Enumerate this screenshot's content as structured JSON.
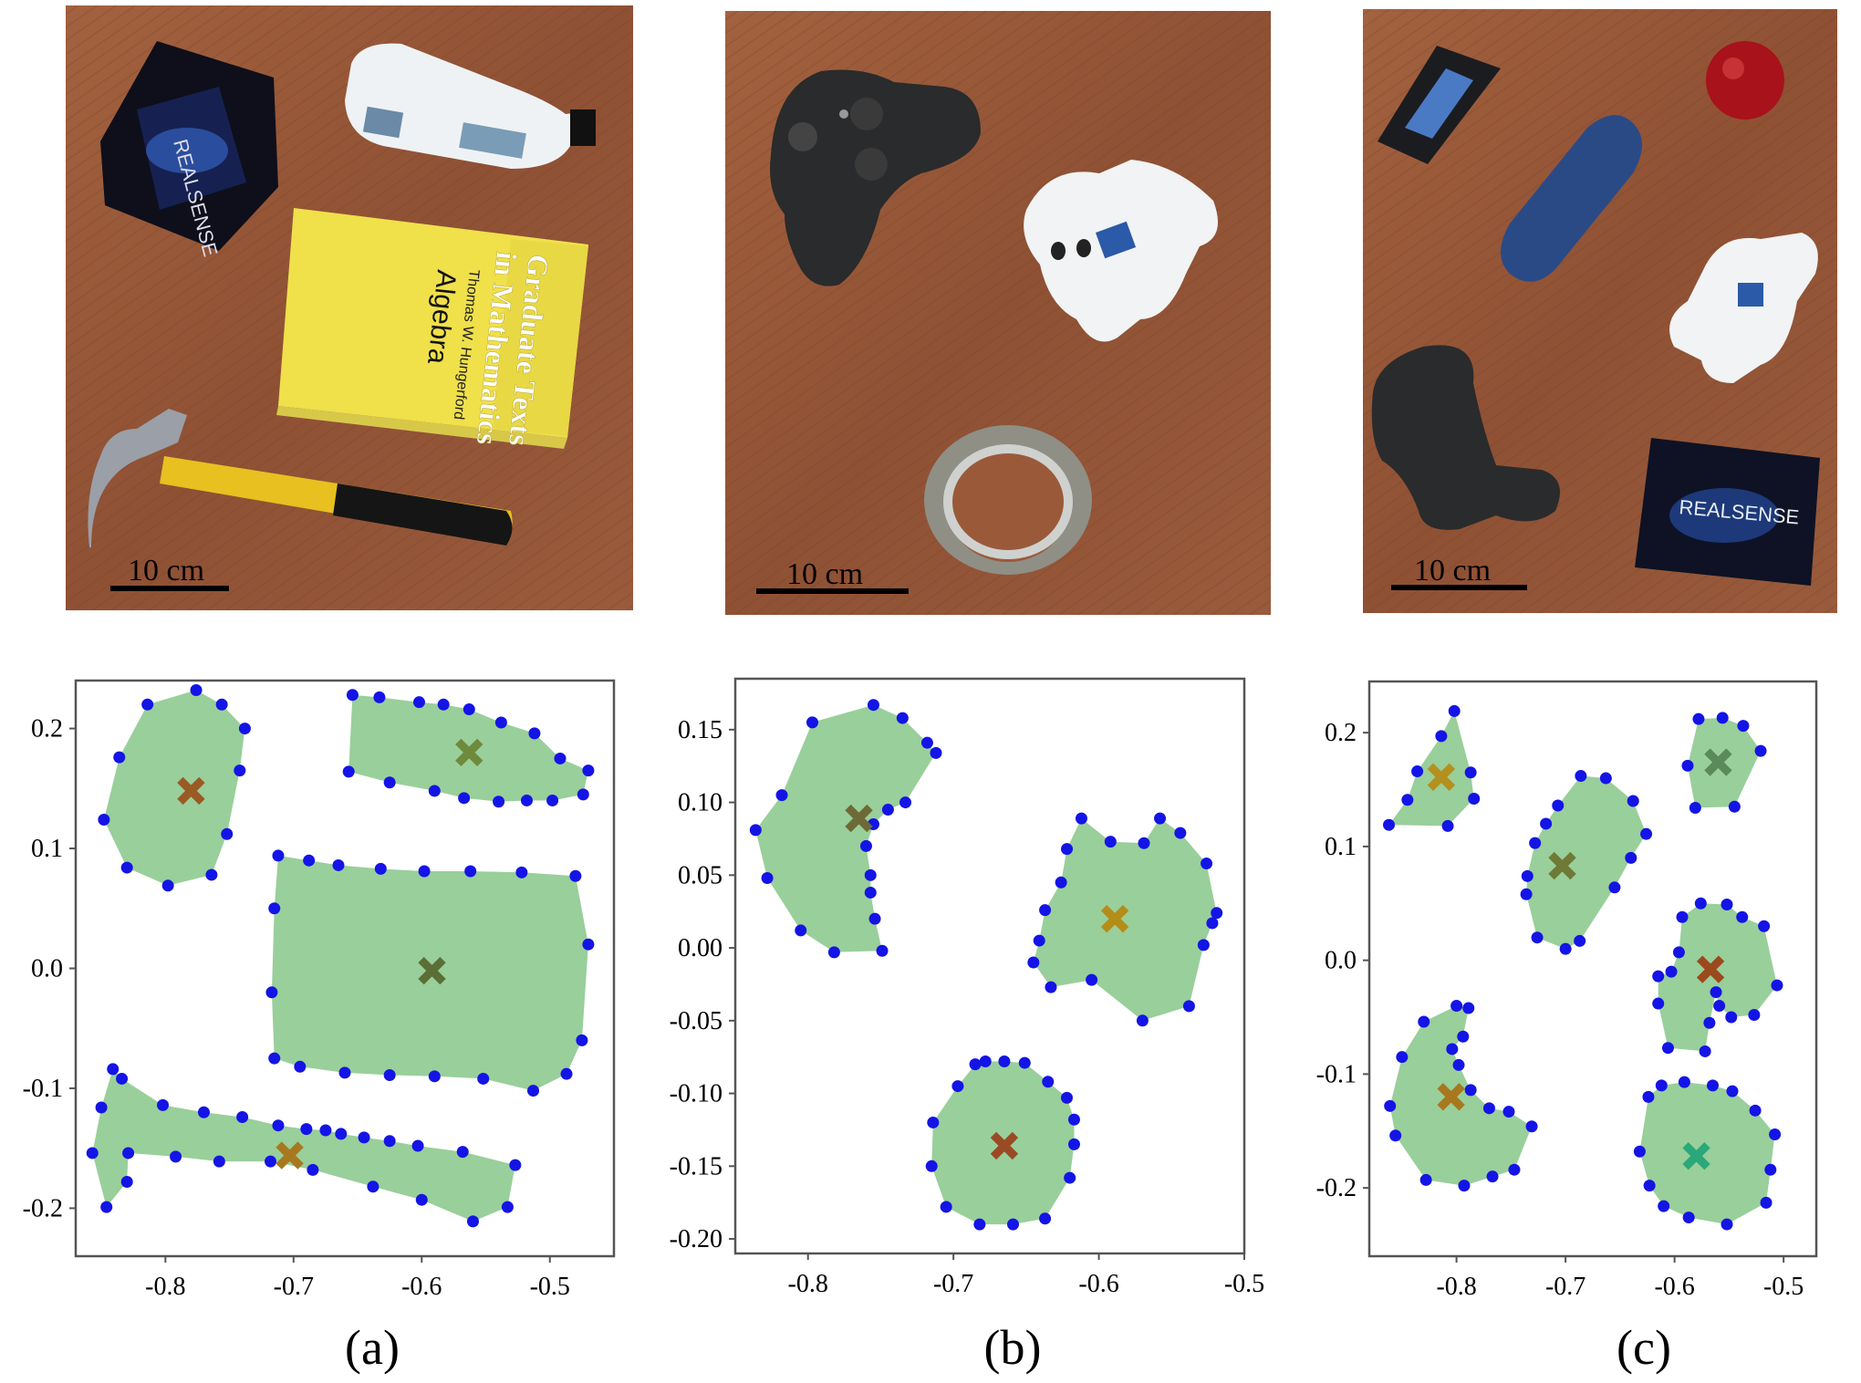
{
  "figure": {
    "panels": [
      {
        "caption": "(a)",
        "scale_bar_label": "10 cm",
        "photo_objects": [
          "realsense-box",
          "plastic-bottle",
          "algebra-book",
          "hammer"
        ],
        "book_text": [
          "Graduate Texts",
          "in Mathematics",
          "Thomas W. Hungerford",
          "Algebra"
        ],
        "box_text": "REALSENSE"
      },
      {
        "caption": "(b)",
        "scale_bar_label": "10 cm",
        "photo_objects": [
          "game-controller",
          "toy-airplane",
          "tape-roll"
        ]
      },
      {
        "caption": "(c)",
        "scale_bar_label": "10 cm",
        "photo_objects": [
          "remote-control",
          "apple",
          "glasses-case",
          "toy-airplane",
          "game-controller",
          "realsense-box"
        ],
        "box_text": "REALSENSE"
      }
    ],
    "colors": {
      "hull_fill": "#99cf9a",
      "boundary_point": "#1414e6",
      "wood": "#9a5a3a"
    }
  },
  "chart_data": [
    {
      "type": "scatter",
      "title": "",
      "xlabel": "",
      "ylabel": "",
      "xlim": [
        -0.87,
        -0.45
      ],
      "ylim": [
        -0.24,
        0.24
      ],
      "xticks": [
        "-0.8",
        "-0.7",
        "-0.6",
        "-0.5"
      ],
      "xtick_values": [
        -0.8,
        -0.7,
        -0.6,
        -0.5
      ],
      "yticks": [
        "0.2",
        "0.1",
        "0.0",
        "-0.1",
        "-0.2"
      ],
      "ytick_values": [
        0.2,
        0.1,
        0.0,
        -0.1,
        -0.2
      ],
      "grid": false,
      "objects": [
        {
          "center": [
            -0.78,
            0.148
          ],
          "center_color": "#9a5a24",
          "boundary": [
            [
              -0.776,
              0.232
            ],
            [
              -0.756,
              0.22
            ],
            [
              -0.738,
              0.2
            ],
            [
              -0.742,
              0.165
            ],
            [
              -0.752,
              0.112
            ],
            [
              -0.764,
              0.078
            ],
            [
              -0.798,
              0.069
            ],
            [
              -0.83,
              0.084
            ],
            [
              -0.848,
              0.124
            ],
            [
              -0.836,
              0.176
            ],
            [
              -0.814,
              0.22
            ]
          ]
        },
        {
          "center": [
            -0.563,
            0.18
          ],
          "center_color": "#6e8a3c",
          "boundary": [
            [
              -0.654,
              0.228
            ],
            [
              -0.633,
              0.226
            ],
            [
              -0.602,
              0.222
            ],
            [
              -0.583,
              0.22
            ],
            [
              -0.563,
              0.216
            ],
            [
              -0.538,
              0.205
            ],
            [
              -0.512,
              0.196
            ],
            [
              -0.492,
              0.175
            ],
            [
              -0.47,
              0.165
            ],
            [
              -0.474,
              0.145
            ],
            [
              -0.498,
              0.14
            ],
            [
              -0.518,
              0.14
            ],
            [
              -0.54,
              0.139
            ],
            [
              -0.567,
              0.142
            ],
            [
              -0.59,
              0.148
            ],
            [
              -0.625,
              0.155
            ],
            [
              -0.657,
              0.164
            ]
          ]
        },
        {
          "center": [
            -0.592,
            -0.002
          ],
          "center_color": "#5a6e36",
          "boundary": [
            [
              -0.712,
              0.094
            ],
            [
              -0.688,
              0.09
            ],
            [
              -0.665,
              0.086
            ],
            [
              -0.632,
              0.083
            ],
            [
              -0.598,
              0.081
            ],
            [
              -0.562,
              0.081
            ],
            [
              -0.522,
              0.08
            ],
            [
              -0.48,
              0.077
            ],
            [
              -0.47,
              0.02
            ],
            [
              -0.475,
              -0.06
            ],
            [
              -0.487,
              -0.088
            ],
            [
              -0.513,
              -0.102
            ],
            [
              -0.552,
              -0.092
            ],
            [
              -0.59,
              -0.09
            ],
            [
              -0.625,
              -0.089
            ],
            [
              -0.66,
              -0.087
            ],
            [
              -0.695,
              -0.082
            ],
            [
              -0.715,
              -0.075
            ],
            [
              -0.717,
              -0.02
            ],
            [
              -0.715,
              0.05
            ]
          ]
        },
        {
          "center": [
            -0.703,
            -0.156
          ],
          "center_color": "#a8781e",
          "boundary": [
            [
              -0.841,
              -0.084
            ],
            [
              -0.85,
              -0.116
            ],
            [
              -0.857,
              -0.154
            ],
            [
              -0.846,
              -0.199
            ],
            [
              -0.83,
              -0.178
            ],
            [
              -0.829,
              -0.154
            ],
            [
              -0.792,
              -0.157
            ],
            [
              -0.758,
              -0.161
            ],
            [
              -0.718,
              -0.161
            ],
            [
              -0.685,
              -0.168
            ],
            [
              -0.638,
              -0.182
            ],
            [
              -0.6,
              -0.193
            ],
            [
              -0.56,
              -0.211
            ],
            [
              -0.533,
              -0.199
            ],
            [
              -0.527,
              -0.164
            ],
            [
              -0.568,
              -0.153
            ],
            [
              -0.603,
              -0.148
            ],
            [
              -0.625,
              -0.144
            ],
            [
              -0.645,
              -0.141
            ],
            [
              -0.663,
              -0.138
            ],
            [
              -0.675,
              -0.135
            ],
            [
              -0.69,
              -0.134
            ],
            [
              -0.712,
              -0.131
            ],
            [
              -0.74,
              -0.124
            ],
            [
              -0.77,
              -0.12
            ],
            [
              -0.802,
              -0.114
            ],
            [
              -0.834,
              -0.092
            ]
          ]
        }
      ]
    },
    {
      "type": "scatter",
      "title": "",
      "xlabel": "",
      "ylabel": "",
      "xlim": [
        -0.85,
        -0.5
      ],
      "ylim": [
        -0.21,
        0.185
      ],
      "xticks": [
        "-0.8",
        "-0.7",
        "-0.6",
        "-0.5"
      ],
      "xtick_values": [
        -0.8,
        -0.7,
        -0.6,
        -0.5
      ],
      "yticks": [
        "0.15",
        "0.10",
        "0.05",
        "0.00",
        "-0.05",
        "-0.10",
        "-0.15",
        "-0.20"
      ],
      "ytick_values": [
        0.15,
        0.1,
        0.05,
        0.0,
        -0.05,
        -0.1,
        -0.15,
        -0.2
      ],
      "grid": false,
      "objects": [
        {
          "center": [
            -0.765,
            0.089
          ],
          "center_color": "#6e6a36",
          "boundary": [
            [
              -0.755,
              0.167
            ],
            [
              -0.735,
              0.158
            ],
            [
              -0.718,
              0.141
            ],
            [
              -0.712,
              0.134
            ],
            [
              -0.733,
              0.1
            ],
            [
              -0.745,
              0.095
            ],
            [
              -0.755,
              0.085
            ],
            [
              -0.76,
              0.07
            ],
            [
              -0.757,
              0.05
            ],
            [
              -0.757,
              0.038
            ],
            [
              -0.754,
              0.02
            ],
            [
              -0.749,
              -0.002
            ],
            [
              -0.782,
              -0.003
            ],
            [
              -0.805,
              0.012
            ],
            [
              -0.828,
              0.048
            ],
            [
              -0.836,
              0.081
            ],
            [
              -0.818,
              0.105
            ],
            [
              -0.797,
              0.155
            ]
          ]
        },
        {
          "center": [
            -0.589,
            0.02
          ],
          "center_color": "#b48c18",
          "boundary": [
            [
              -0.612,
              0.089
            ],
            [
              -0.592,
              0.073
            ],
            [
              -0.569,
              0.072
            ],
            [
              -0.558,
              0.089
            ],
            [
              -0.544,
              0.079
            ],
            [
              -0.526,
              0.058
            ],
            [
              -0.519,
              0.024
            ],
            [
              -0.522,
              0.017
            ],
            [
              -0.528,
              0.002
            ],
            [
              -0.538,
              -0.04
            ],
            [
              -0.57,
              -0.05
            ],
            [
              -0.605,
              -0.022
            ],
            [
              -0.633,
              -0.027
            ],
            [
              -0.645,
              -0.01
            ],
            [
              -0.641,
              0.005
            ],
            [
              -0.637,
              0.026
            ],
            [
              -0.626,
              0.045
            ],
            [
              -0.622,
              0.068
            ]
          ]
        },
        {
          "center": [
            -0.665,
            -0.136
          ],
          "center_color": "#9a4a24",
          "boundary": [
            [
              -0.678,
              -0.078
            ],
            [
              -0.665,
              -0.078
            ],
            [
              -0.651,
              -0.079
            ],
            [
              -0.635,
              -0.092
            ],
            [
              -0.622,
              -0.103
            ],
            [
              -0.617,
              -0.118
            ],
            [
              -0.617,
              -0.135
            ],
            [
              -0.62,
              -0.158
            ],
            [
              -0.637,
              -0.186
            ],
            [
              -0.659,
              -0.19
            ],
            [
              -0.682,
              -0.19
            ],
            [
              -0.705,
              -0.178
            ],
            [
              -0.715,
              -0.15
            ],
            [
              -0.714,
              -0.12
            ],
            [
              -0.697,
              -0.095
            ],
            [
              -0.685,
              -0.08
            ]
          ]
        }
      ]
    },
    {
      "type": "scatter",
      "title": "",
      "xlabel": "",
      "ylabel": "",
      "xlim": [
        -0.88,
        -0.47
      ],
      "ylim": [
        -0.26,
        0.245
      ],
      "xticks": [
        "-0.8",
        "-0.7",
        "-0.6",
        "-0.5"
      ],
      "xtick_values": [
        -0.8,
        -0.7,
        -0.6,
        -0.5
      ],
      "yticks": [
        "0.2",
        "0.1",
        "0.0",
        "-0.1",
        "-0.2"
      ],
      "ytick_values": [
        0.2,
        0.1,
        0.0,
        -0.1,
        -0.2
      ],
      "grid": false,
      "objects": [
        {
          "center": [
            -0.814,
            0.161
          ],
          "center_color": "#b4901e",
          "boundary": [
            [
              -0.802,
              0.219
            ],
            [
              -0.814,
              0.197
            ],
            [
              -0.836,
              0.166
            ],
            [
              -0.845,
              0.141
            ],
            [
              -0.862,
              0.119
            ],
            [
              -0.808,
              0.118
            ],
            [
              -0.784,
              0.142
            ],
            [
              -0.787,
              0.165
            ]
          ]
        },
        {
          "center": [
            -0.703,
            0.083
          ],
          "center_color": "#6e7a36",
          "boundary": [
            [
              -0.707,
              0.136
            ],
            [
              -0.686,
              0.162
            ],
            [
              -0.663,
              0.16
            ],
            [
              -0.638,
              0.14
            ],
            [
              -0.626,
              0.111
            ],
            [
              -0.64,
              0.09
            ],
            [
              -0.655,
              0.064
            ],
            [
              -0.687,
              0.017
            ],
            [
              -0.7,
              0.01
            ],
            [
              -0.726,
              0.02
            ],
            [
              -0.736,
              0.058
            ],
            [
              -0.735,
              0.074
            ],
            [
              -0.728,
              0.103
            ],
            [
              -0.718,
              0.12
            ]
          ]
        },
        {
          "center": [
            -0.56,
            0.174
          ],
          "center_color": "#5a8a5a",
          "boundary": [
            [
              -0.578,
              0.212
            ],
            [
              -0.556,
              0.213
            ],
            [
              -0.537,
              0.206
            ],
            [
              -0.521,
              0.184
            ],
            [
              -0.545,
              0.135
            ],
            [
              -0.581,
              0.134
            ],
            [
              -0.588,
              0.171
            ]
          ]
        },
        {
          "center": [
            -0.567,
            -0.008
          ],
          "center_color": "#9a4a1e",
          "boundary": [
            [
              -0.576,
              0.05
            ],
            [
              -0.552,
              0.049
            ],
            [
              -0.538,
              0.038
            ],
            [
              -0.518,
              0.03
            ],
            [
              -0.506,
              -0.022
            ],
            [
              -0.527,
              -0.048
            ],
            [
              -0.548,
              -0.05
            ],
            [
              -0.559,
              -0.04
            ],
            [
              -0.562,
              -0.028
            ],
            [
              -0.568,
              -0.055
            ],
            [
              -0.572,
              -0.08
            ],
            [
              -0.606,
              -0.077
            ],
            [
              -0.615,
              -0.038
            ],
            [
              -0.615,
              -0.014
            ],
            [
              -0.603,
              -0.01
            ],
            [
              -0.596,
              0.007
            ],
            [
              -0.593,
              0.038
            ]
          ]
        },
        {
          "center": [
            -0.805,
            -0.12
          ],
          "center_color": "#a8781e",
          "boundary": [
            [
              -0.8,
              -0.04
            ],
            [
              -0.789,
              -0.042
            ],
            [
              -0.794,
              -0.067
            ],
            [
              -0.804,
              -0.078
            ],
            [
              -0.798,
              -0.092
            ],
            [
              -0.787,
              -0.114
            ],
            [
              -0.77,
              -0.13
            ],
            [
              -0.752,
              -0.133
            ],
            [
              -0.731,
              -0.146
            ],
            [
              -0.747,
              -0.184
            ],
            [
              -0.767,
              -0.19
            ],
            [
              -0.793,
              -0.198
            ],
            [
              -0.828,
              -0.193
            ],
            [
              -0.856,
              -0.154
            ],
            [
              -0.861,
              -0.128
            ],
            [
              -0.85,
              -0.085
            ],
            [
              -0.83,
              -0.054
            ]
          ]
        },
        {
          "center": [
            -0.58,
            -0.172
          ],
          "center_color": "#2aa87a",
          "boundary": [
            [
              -0.612,
              -0.11
            ],
            [
              -0.591,
              -0.107
            ],
            [
              -0.565,
              -0.11
            ],
            [
              -0.547,
              -0.115
            ],
            [
              -0.526,
              -0.132
            ],
            [
              -0.508,
              -0.153
            ],
            [
              -0.512,
              -0.184
            ],
            [
              -0.516,
              -0.213
            ],
            [
              -0.552,
              -0.232
            ],
            [
              -0.587,
              -0.226
            ],
            [
              -0.61,
              -0.216
            ],
            [
              -0.623,
              -0.198
            ],
            [
              -0.632,
              -0.168
            ],
            [
              -0.624,
              -0.12
            ]
          ]
        }
      ]
    }
  ]
}
